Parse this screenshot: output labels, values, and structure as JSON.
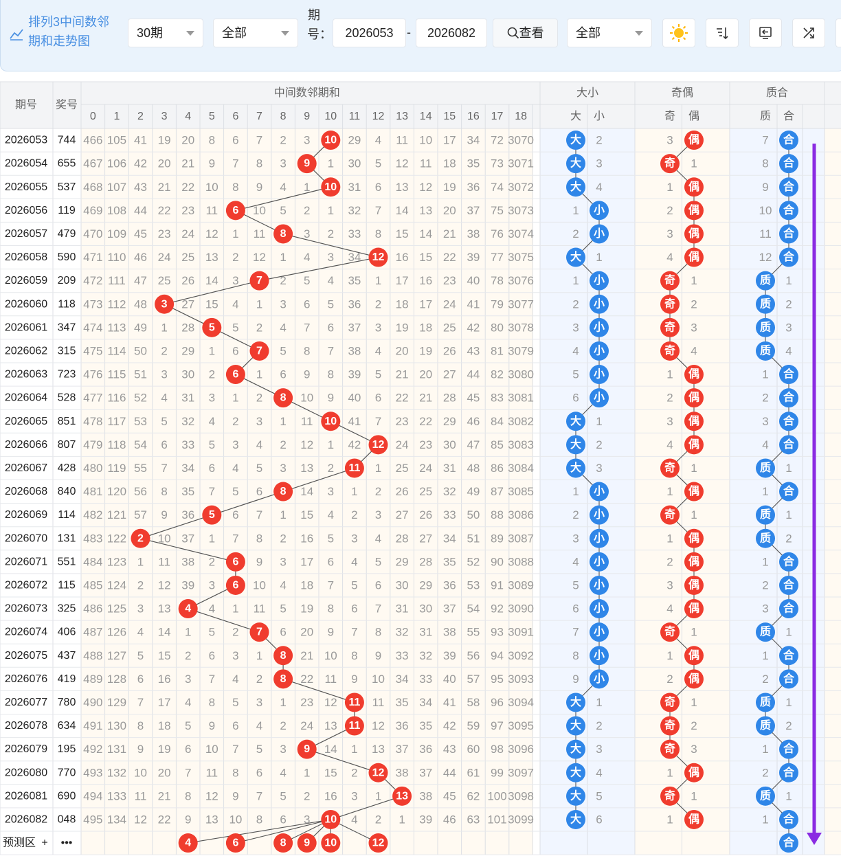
{
  "header": {
    "title_line1": "排列3中间数邻",
    "title_line2": "期和走势图",
    "range_select": "30期",
    "filter_select": "全部",
    "period_label": "期号：",
    "start_period": "2026053",
    "end_period": "2026082",
    "dash": "-",
    "query_button": "查看",
    "all_select": "全部",
    "icons": [
      "sun-icon",
      "sort-icon",
      "exit-icon",
      "shuffle-icon"
    ]
  },
  "chart_data": {
    "type": "table",
    "title": "排列3中间数邻期和走势图",
    "headers": {
      "period": "期号",
      "prize": "奖号",
      "group_main": "中间数邻期和",
      "group_size": "大小",
      "group_parity": "奇偶",
      "group_prime": "质合",
      "main_cols": [
        "0",
        "1",
        "2",
        "3",
        "4",
        "5",
        "6",
        "7",
        "8",
        "9",
        "10",
        "11",
        "12",
        "13",
        "14",
        "15",
        "16",
        "17",
        "18"
      ],
      "size_cols": [
        "大",
        "小"
      ],
      "parity_cols": [
        "奇",
        "偶"
      ],
      "prime_cols": [
        "质",
        "合"
      ]
    },
    "rows": [
      {
        "period": "2026053",
        "prize": "744",
        "cells": [
          "466",
          "105",
          "41",
          "19",
          "20",
          "8",
          "6",
          "7",
          "2",
          "3",
          "10",
          "29",
          "4",
          "11",
          "10",
          "17",
          "34",
          "72",
          "3070"
        ],
        "hit": 10,
        "size": [
          "大",
          "2"
        ],
        "parity": [
          "3",
          "偶"
        ],
        "prime": [
          "7",
          "合"
        ]
      },
      {
        "period": "2026054",
        "prize": "655",
        "cells": [
          "467",
          "106",
          "42",
          "20",
          "21",
          "9",
          "7",
          "8",
          "3",
          "9",
          "1",
          "30",
          "5",
          "12",
          "11",
          "18",
          "35",
          "73",
          "3071"
        ],
        "hit": 9,
        "size": [
          "大",
          "3"
        ],
        "parity": [
          "奇",
          "1"
        ],
        "prime": [
          "8",
          "合"
        ]
      },
      {
        "period": "2026055",
        "prize": "537",
        "cells": [
          "468",
          "107",
          "43",
          "21",
          "22",
          "10",
          "8",
          "9",
          "4",
          "1",
          "10",
          "31",
          "6",
          "13",
          "12",
          "19",
          "36",
          "74",
          "3072"
        ],
        "hit": 10,
        "size": [
          "大",
          "4"
        ],
        "parity": [
          "1",
          "偶"
        ],
        "prime": [
          "9",
          "合"
        ]
      },
      {
        "period": "2026056",
        "prize": "119",
        "cells": [
          "469",
          "108",
          "44",
          "22",
          "23",
          "11",
          "6",
          "10",
          "5",
          "2",
          "1",
          "32",
          "7",
          "14",
          "13",
          "20",
          "37",
          "75",
          "3073"
        ],
        "hit": 6,
        "size": [
          "1",
          "小"
        ],
        "parity": [
          "2",
          "偶"
        ],
        "prime": [
          "10",
          "合"
        ]
      },
      {
        "period": "2026057",
        "prize": "479",
        "cells": [
          "470",
          "109",
          "45",
          "23",
          "24",
          "12",
          "1",
          "11",
          "8",
          "3",
          "2",
          "33",
          "8",
          "15",
          "14",
          "21",
          "38",
          "76",
          "3074"
        ],
        "hit": 8,
        "size": [
          "2",
          "小"
        ],
        "parity": [
          "3",
          "偶"
        ],
        "prime": [
          "11",
          "合"
        ]
      },
      {
        "period": "2026058",
        "prize": "590",
        "cells": [
          "471",
          "110",
          "46",
          "24",
          "25",
          "13",
          "2",
          "12",
          "1",
          "4",
          "3",
          "34",
          "12",
          "16",
          "15",
          "22",
          "39",
          "77",
          "3075"
        ],
        "hit": 12,
        "size": [
          "大",
          "1"
        ],
        "parity": [
          "4",
          "偶"
        ],
        "prime": [
          "12",
          "合"
        ]
      },
      {
        "period": "2026059",
        "prize": "209",
        "cells": [
          "472",
          "111",
          "47",
          "25",
          "26",
          "14",
          "3",
          "7",
          "2",
          "5",
          "4",
          "35",
          "1",
          "17",
          "16",
          "23",
          "40",
          "78",
          "3076"
        ],
        "hit": 7,
        "size": [
          "1",
          "小"
        ],
        "parity": [
          "奇",
          "1"
        ],
        "prime": [
          "质",
          "1"
        ]
      },
      {
        "period": "2026060",
        "prize": "118",
        "cells": [
          "473",
          "112",
          "48",
          "3",
          "27",
          "15",
          "4",
          "1",
          "3",
          "6",
          "5",
          "36",
          "2",
          "18",
          "17",
          "24",
          "41",
          "79",
          "3077"
        ],
        "hit": 3,
        "size": [
          "2",
          "小"
        ],
        "parity": [
          "奇",
          "2"
        ],
        "prime": [
          "质",
          "2"
        ]
      },
      {
        "period": "2026061",
        "prize": "347",
        "cells": [
          "474",
          "113",
          "49",
          "1",
          "28",
          "5",
          "5",
          "2",
          "4",
          "7",
          "6",
          "37",
          "3",
          "19",
          "18",
          "25",
          "42",
          "80",
          "3078"
        ],
        "hit": 5,
        "size": [
          "3",
          "小"
        ],
        "parity": [
          "奇",
          "3"
        ],
        "prime": [
          "质",
          "3"
        ]
      },
      {
        "period": "2026062",
        "prize": "315",
        "cells": [
          "475",
          "114",
          "50",
          "2",
          "29",
          "1",
          "6",
          "7",
          "5",
          "8",
          "7",
          "38",
          "4",
          "20",
          "19",
          "26",
          "43",
          "81",
          "3079"
        ],
        "hit": 7,
        "size": [
          "4",
          "小"
        ],
        "parity": [
          "奇",
          "4"
        ],
        "prime": [
          "质",
          "4"
        ]
      },
      {
        "period": "2026063",
        "prize": "723",
        "cells": [
          "476",
          "115",
          "51",
          "3",
          "30",
          "2",
          "6",
          "1",
          "6",
          "9",
          "8",
          "39",
          "5",
          "21",
          "20",
          "27",
          "44",
          "82",
          "3080"
        ],
        "hit": 6,
        "size": [
          "5",
          "小"
        ],
        "parity": [
          "1",
          "偶"
        ],
        "prime": [
          "1",
          "合"
        ]
      },
      {
        "period": "2026064",
        "prize": "528",
        "cells": [
          "477",
          "116",
          "52",
          "4",
          "31",
          "3",
          "1",
          "2",
          "8",
          "10",
          "9",
          "40",
          "6",
          "22",
          "21",
          "28",
          "45",
          "83",
          "3081"
        ],
        "hit": 8,
        "size": [
          "6",
          "小"
        ],
        "parity": [
          "2",
          "偶"
        ],
        "prime": [
          "2",
          "合"
        ]
      },
      {
        "period": "2026065",
        "prize": "851",
        "cells": [
          "478",
          "117",
          "53",
          "5",
          "32",
          "4",
          "2",
          "3",
          "1",
          "11",
          "10",
          "41",
          "7",
          "23",
          "22",
          "29",
          "46",
          "84",
          "3082"
        ],
        "hit": 10,
        "size": [
          "大",
          "1"
        ],
        "parity": [
          "3",
          "偶"
        ],
        "prime": [
          "3",
          "合"
        ]
      },
      {
        "period": "2026066",
        "prize": "807",
        "cells": [
          "479",
          "118",
          "54",
          "6",
          "33",
          "5",
          "3",
          "4",
          "2",
          "12",
          "1",
          "42",
          "12",
          "24",
          "23",
          "30",
          "47",
          "85",
          "3083"
        ],
        "hit": 12,
        "size": [
          "大",
          "2"
        ],
        "parity": [
          "4",
          "偶"
        ],
        "prime": [
          "4",
          "合"
        ]
      },
      {
        "period": "2026067",
        "prize": "428",
        "cells": [
          "480",
          "119",
          "55",
          "7",
          "34",
          "6",
          "4",
          "5",
          "3",
          "13",
          "2",
          "11",
          "1",
          "25",
          "24",
          "31",
          "48",
          "86",
          "3084"
        ],
        "hit": 11,
        "size": [
          "大",
          "3"
        ],
        "parity": [
          "奇",
          "1"
        ],
        "prime": [
          "质",
          "1"
        ]
      },
      {
        "period": "2026068",
        "prize": "840",
        "cells": [
          "481",
          "120",
          "56",
          "8",
          "35",
          "7",
          "5",
          "6",
          "8",
          "14",
          "3",
          "1",
          "2",
          "26",
          "25",
          "32",
          "49",
          "87",
          "3085"
        ],
        "hit": 8,
        "size": [
          "1",
          "小"
        ],
        "parity": [
          "1",
          "偶"
        ],
        "prime": [
          "1",
          "合"
        ]
      },
      {
        "period": "2026069",
        "prize": "114",
        "cells": [
          "482",
          "121",
          "57",
          "9",
          "36",
          "5",
          "6",
          "7",
          "1",
          "15",
          "4",
          "2",
          "3",
          "27",
          "26",
          "33",
          "50",
          "88",
          "3086"
        ],
        "hit": 5,
        "size": [
          "2",
          "小"
        ],
        "parity": [
          "奇",
          "1"
        ],
        "prime": [
          "质",
          "1"
        ]
      },
      {
        "period": "2026070",
        "prize": "131",
        "cells": [
          "483",
          "122",
          "2",
          "10",
          "37",
          "1",
          "7",
          "8",
          "2",
          "16",
          "5",
          "3",
          "4",
          "28",
          "27",
          "34",
          "51",
          "89",
          "3087"
        ],
        "hit": 2,
        "size": [
          "3",
          "小"
        ],
        "parity": [
          "1",
          "偶"
        ],
        "prime": [
          "质",
          "2"
        ]
      },
      {
        "period": "2026071",
        "prize": "551",
        "cells": [
          "484",
          "123",
          "1",
          "11",
          "38",
          "2",
          "6",
          "9",
          "3",
          "17",
          "6",
          "4",
          "5",
          "29",
          "28",
          "35",
          "52",
          "90",
          "3088"
        ],
        "hit": 6,
        "size": [
          "4",
          "小"
        ],
        "parity": [
          "2",
          "偶"
        ],
        "prime": [
          "1",
          "合"
        ]
      },
      {
        "period": "2026072",
        "prize": "115",
        "cells": [
          "485",
          "124",
          "2",
          "12",
          "39",
          "3",
          "6",
          "10",
          "4",
          "18",
          "7",
          "5",
          "6",
          "30",
          "29",
          "36",
          "53",
          "91",
          "3089"
        ],
        "hit": 6,
        "size": [
          "5",
          "小"
        ],
        "parity": [
          "3",
          "偶"
        ],
        "prime": [
          "2",
          "合"
        ]
      },
      {
        "period": "2026073",
        "prize": "325",
        "cells": [
          "486",
          "125",
          "3",
          "13",
          "4",
          "4",
          "1",
          "11",
          "5",
          "19",
          "8",
          "6",
          "7",
          "31",
          "30",
          "37",
          "54",
          "92",
          "3090"
        ],
        "hit": 4,
        "size": [
          "6",
          "小"
        ],
        "parity": [
          "4",
          "偶"
        ],
        "prime": [
          "3",
          "合"
        ]
      },
      {
        "period": "2026074",
        "prize": "406",
        "cells": [
          "487",
          "126",
          "4",
          "14",
          "1",
          "5",
          "2",
          "7",
          "6",
          "20",
          "9",
          "7",
          "8",
          "32",
          "31",
          "38",
          "55",
          "93",
          "3091"
        ],
        "hit": 7,
        "size": [
          "7",
          "小"
        ],
        "parity": [
          "奇",
          "1"
        ],
        "prime": [
          "质",
          "1"
        ]
      },
      {
        "period": "2026075",
        "prize": "437",
        "cells": [
          "488",
          "127",
          "5",
          "15",
          "2",
          "6",
          "3",
          "1",
          "8",
          "21",
          "10",
          "8",
          "9",
          "33",
          "32",
          "39",
          "56",
          "94",
          "3092"
        ],
        "hit": 8,
        "size": [
          "8",
          "小"
        ],
        "parity": [
          "1",
          "偶"
        ],
        "prime": [
          "1",
          "合"
        ]
      },
      {
        "period": "2026076",
        "prize": "419",
        "cells": [
          "489",
          "128",
          "6",
          "16",
          "3",
          "7",
          "4",
          "2",
          "8",
          "22",
          "11",
          "9",
          "10",
          "34",
          "33",
          "40",
          "57",
          "95",
          "3093"
        ],
        "hit": 8,
        "size": [
          "9",
          "小"
        ],
        "parity": [
          "2",
          "偶"
        ],
        "prime": [
          "2",
          "合"
        ]
      },
      {
        "period": "2026077",
        "prize": "780",
        "cells": [
          "490",
          "129",
          "7",
          "17",
          "4",
          "8",
          "5",
          "3",
          "1",
          "23",
          "12",
          "11",
          "11",
          "35",
          "34",
          "41",
          "58",
          "96",
          "3094"
        ],
        "hit": 11,
        "size": [
          "大",
          "1"
        ],
        "parity": [
          "奇",
          "1"
        ],
        "prime": [
          "质",
          "1"
        ]
      },
      {
        "period": "2026078",
        "prize": "634",
        "cells": [
          "491",
          "130",
          "8",
          "18",
          "5",
          "9",
          "6",
          "4",
          "2",
          "24",
          "13",
          "11",
          "12",
          "36",
          "35",
          "42",
          "59",
          "97",
          "3095"
        ],
        "hit": 11,
        "size": [
          "大",
          "2"
        ],
        "parity": [
          "奇",
          "2"
        ],
        "prime": [
          "质",
          "2"
        ]
      },
      {
        "period": "2026079",
        "prize": "195",
        "cells": [
          "492",
          "131",
          "9",
          "19",
          "6",
          "10",
          "7",
          "5",
          "3",
          "9",
          "14",
          "1",
          "13",
          "37",
          "36",
          "43",
          "60",
          "98",
          "3096"
        ],
        "hit": 9,
        "size": [
          "大",
          "3"
        ],
        "parity": [
          "奇",
          "3"
        ],
        "prime": [
          "1",
          "合"
        ]
      },
      {
        "period": "2026080",
        "prize": "770",
        "cells": [
          "493",
          "132",
          "10",
          "20",
          "7",
          "11",
          "8",
          "6",
          "4",
          "1",
          "15",
          "2",
          "12",
          "38",
          "37",
          "44",
          "61",
          "99",
          "3097"
        ],
        "hit": 12,
        "size": [
          "大",
          "4"
        ],
        "parity": [
          "1",
          "偶"
        ],
        "prime": [
          "2",
          "合"
        ]
      },
      {
        "period": "2026081",
        "prize": "690",
        "cells": [
          "494",
          "133",
          "11",
          "21",
          "8",
          "12",
          "9",
          "7",
          "5",
          "2",
          "16",
          "3",
          "1",
          "13",
          "38",
          "45",
          "62",
          "100",
          "3098"
        ],
        "hit": 13,
        "size": [
          "大",
          "5"
        ],
        "parity": [
          "奇",
          "1"
        ],
        "prime": [
          "质",
          "1"
        ]
      },
      {
        "period": "2026082",
        "prize": "048",
        "cells": [
          "495",
          "134",
          "12",
          "22",
          "9",
          "13",
          "10",
          "8",
          "6",
          "3",
          "10",
          "4",
          "2",
          "1",
          "39",
          "46",
          "63",
          "101",
          "3099"
        ],
        "hit": 10,
        "size": [
          "大",
          "6"
        ],
        "parity": [
          "1",
          "偶"
        ],
        "prime": [
          "1",
          "合"
        ]
      }
    ],
    "prediction": {
      "label": "预测区",
      "plus": "+",
      "more": "•••",
      "balls": [
        "4",
        "6",
        "8",
        "9",
        "10",
        "12"
      ],
      "prime_ball": "合"
    },
    "colors": {
      "red": "#f03c2e",
      "blue": "#2f86e8",
      "purple": "#8a2be2",
      "zone_blue": "#f1f6ff",
      "zone_cream": "#fffaf2",
      "header_bg": "#f3f4f6"
    }
  }
}
